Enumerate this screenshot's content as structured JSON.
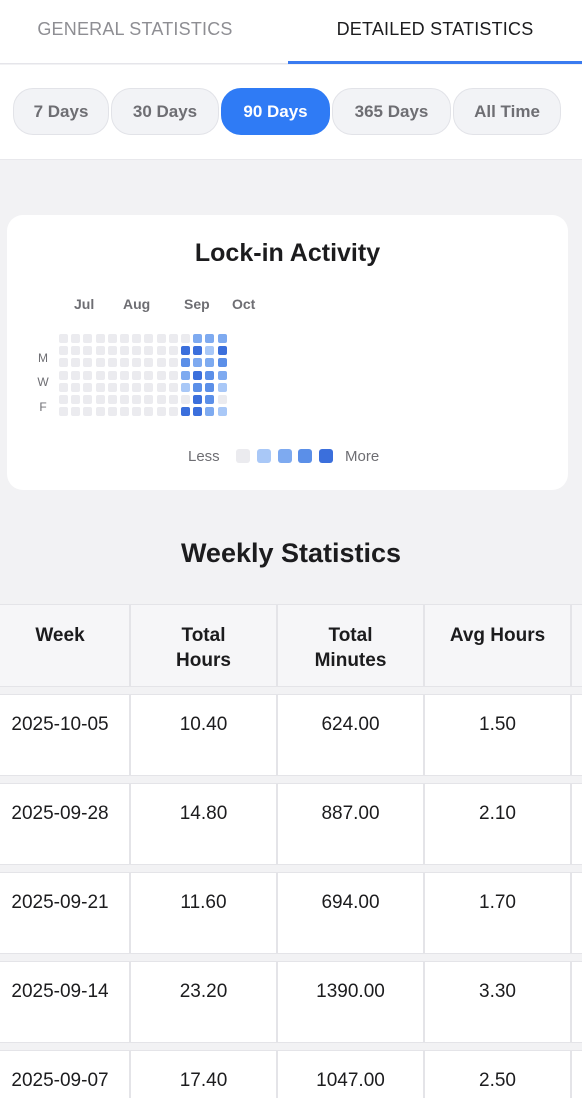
{
  "tabs": {
    "general": "GENERAL STATISTICS",
    "detailed": "DETAILED STATISTICS",
    "active": "detailed"
  },
  "periods": {
    "options": [
      "7 Days",
      "30 Days",
      "90 Days",
      "365 Days",
      "All Time"
    ],
    "selected": "90 Days"
  },
  "activity": {
    "title": "Lock-in Activity",
    "months": [
      "Jul",
      "Aug",
      "Sep",
      "Oct"
    ],
    "day_labels": [
      "M",
      "W",
      "F"
    ],
    "legend": {
      "less": "Less",
      "more": "More"
    },
    "colors": [
      "#ebebef",
      "#a9c8f7",
      "#7eaaf0",
      "#5b8fe8",
      "#3b6fdc"
    ],
    "grid_levels": [
      [
        0,
        0,
        0,
        0,
        0,
        0,
        0,
        0,
        0,
        0,
        0,
        2,
        2,
        2
      ],
      [
        0,
        0,
        0,
        0,
        0,
        0,
        0,
        0,
        0,
        0,
        4,
        4,
        1,
        4
      ],
      [
        0,
        0,
        0,
        0,
        0,
        0,
        0,
        0,
        0,
        0,
        3,
        2,
        2,
        3
      ],
      [
        0,
        0,
        0,
        0,
        0,
        0,
        0,
        0,
        0,
        0,
        2,
        4,
        3,
        2
      ],
      [
        0,
        0,
        0,
        0,
        0,
        0,
        0,
        0,
        0,
        0,
        1,
        3,
        3,
        1
      ],
      [
        0,
        0,
        0,
        0,
        0,
        0,
        0,
        0,
        0,
        0,
        0,
        4,
        3,
        0
      ],
      [
        0,
        0,
        0,
        0,
        0,
        0,
        0,
        0,
        0,
        0,
        4,
        4,
        2,
        1
      ]
    ]
  },
  "weekly": {
    "title": "Weekly Statistics",
    "headers": [
      "Week",
      "Total Hours",
      "Total Minutes",
      "Avg Hours"
    ],
    "rows": [
      [
        "2025-10-05",
        "10.40",
        "624.00",
        "1.50"
      ],
      [
        "2025-09-28",
        "14.80",
        "887.00",
        "2.10"
      ],
      [
        "2025-09-21",
        "11.60",
        "694.00",
        "1.70"
      ],
      [
        "2025-09-14",
        "23.20",
        "1390.00",
        "3.30"
      ],
      [
        "2025-09-07",
        "17.40",
        "1047.00",
        "2.50"
      ]
    ]
  }
}
